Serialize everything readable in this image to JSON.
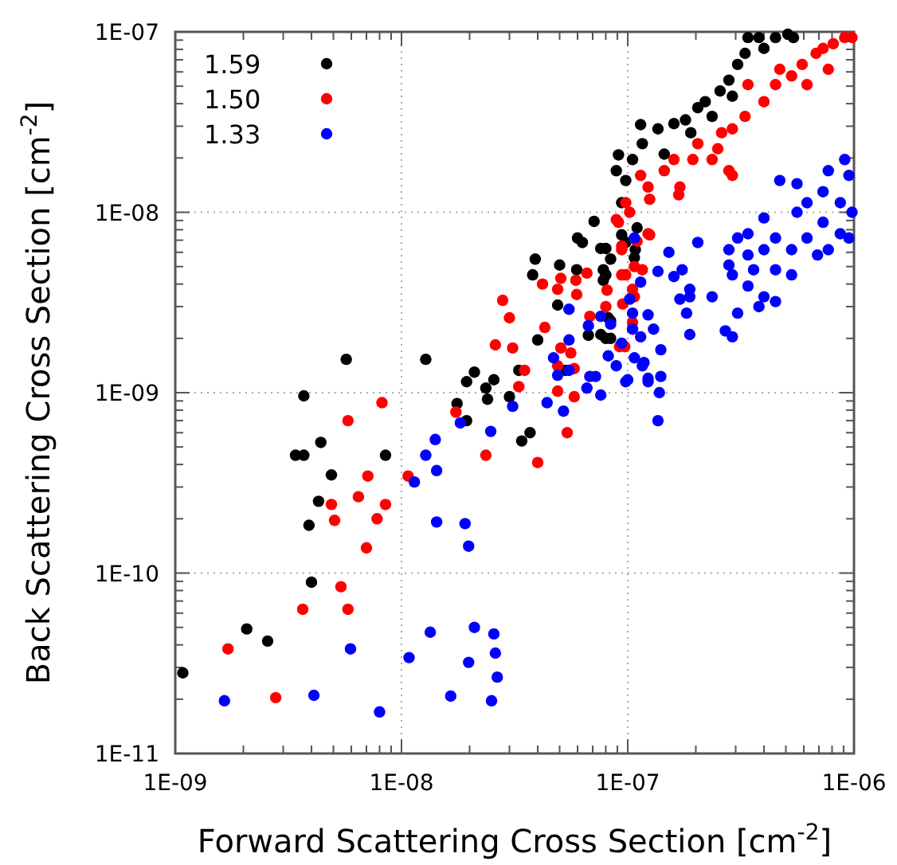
{
  "chart_data": {
    "type": "scatter",
    "xlabel": "Forward Scattering Cross Section [cm$^{-2}$]",
    "ylabel": "Back Scattering Cross Section [cm$^{-2}$]",
    "log": "xy",
    "grid": true,
    "legend": "top left",
    "marker": "circle",
    "xlim": [
      1e-09,
      1e-06
    ],
    "ylim": [
      1e-11,
      1e-07
    ],
    "xticks": [
      {
        "value": 1e-09,
        "label": "1E-09"
      },
      {
        "value": 2e-09,
        "label": null
      },
      {
        "value": 3e-09,
        "label": null
      },
      {
        "value": 4e-09,
        "label": null
      },
      {
        "value": 5e-09,
        "label": null
      },
      {
        "value": 6e-09,
        "label": null
      },
      {
        "value": 7e-09,
        "label": null
      },
      {
        "value": 8e-09,
        "label": null
      },
      {
        "value": 9e-09,
        "label": null
      },
      {
        "value": 1e-08,
        "label": "1E-08"
      },
      {
        "value": 2e-08,
        "label": null
      },
      {
        "value": 3e-08,
        "label": null
      },
      {
        "value": 4e-08,
        "label": null
      },
      {
        "value": 5e-08,
        "label": null
      },
      {
        "value": 6e-08,
        "label": null
      },
      {
        "value": 7e-08,
        "label": null
      },
      {
        "value": 8e-08,
        "label": null
      },
      {
        "value": 9e-08,
        "label": null
      },
      {
        "value": 1e-07,
        "label": "1E-07"
      },
      {
        "value": 2e-07,
        "label": null
      },
      {
        "value": 3e-07,
        "label": null
      },
      {
        "value": 4e-07,
        "label": null
      },
      {
        "value": 5e-07,
        "label": null
      },
      {
        "value": 6e-07,
        "label": null
      },
      {
        "value": 7e-07,
        "label": null
      },
      {
        "value": 8e-07,
        "label": null
      },
      {
        "value": 9e-07,
        "label": null
      },
      {
        "value": 1e-06,
        "label": "1E-06"
      }
    ],
    "yticks": [
      {
        "value": 1e-11,
        "label": "1E-11"
      },
      {
        "value": 2e-11,
        "label": null
      },
      {
        "value": 3e-11,
        "label": null
      },
      {
        "value": 4e-11,
        "label": null
      },
      {
        "value": 5e-11,
        "label": null
      },
      {
        "value": 6e-11,
        "label": null
      },
      {
        "value": 7e-11,
        "label": null
      },
      {
        "value": 8e-11,
        "label": null
      },
      {
        "value": 9e-11,
        "label": null
      },
      {
        "value": 1e-10,
        "label": "1E-10"
      },
      {
        "value": 2e-10,
        "label": null
      },
      {
        "value": 3e-10,
        "label": null
      },
      {
        "value": 4e-10,
        "label": null
      },
      {
        "value": 5e-10,
        "label": null
      },
      {
        "value": 6e-10,
        "label": null
      },
      {
        "value": 7e-10,
        "label": null
      },
      {
        "value": 8e-10,
        "label": null
      },
      {
        "value": 9e-10,
        "label": null
      },
      {
        "value": 1e-09,
        "label": "1E-09"
      },
      {
        "value": 2e-09,
        "label": null
      },
      {
        "value": 3e-09,
        "label": null
      },
      {
        "value": 4e-09,
        "label": null
      },
      {
        "value": 5e-09,
        "label": null
      },
      {
        "value": 6e-09,
        "label": null
      },
      {
        "value": 7e-09,
        "label": null
      },
      {
        "value": 8e-09,
        "label": null
      },
      {
        "value": 9e-09,
        "label": null
      },
      {
        "value": 1e-08,
        "label": "1E-08"
      },
      {
        "value": 2e-08,
        "label": null
      },
      {
        "value": 3e-08,
        "label": null
      },
      {
        "value": 4e-08,
        "label": null
      },
      {
        "value": 5e-08,
        "label": null
      },
      {
        "value": 6e-08,
        "label": null
      },
      {
        "value": 7e-08,
        "label": null
      },
      {
        "value": 8e-08,
        "label": null
      },
      {
        "value": 9e-08,
        "label": null
      },
      {
        "value": 1e-07,
        "label": "1E-07"
      }
    ],
    "series": [
      {
        "name": "1.59",
        "color": "#000000",
        "x": [
          1.08e-09,
          2.07e-09,
          2.56e-09,
          3.4e-09,
          3.7e-09,
          5.7e-09,
          3.7e-09,
          4.4e-09,
          4.9e-09,
          4.3e-09,
          3.9e-09,
          4e-09,
          8.5e-09,
          1.28e-08,
          1.94e-08,
          1.76e-08,
          2.1e-08,
          2.36e-08,
          2.56e-08,
          2.4e-08,
          3e-08,
          3.3e-08,
          3.9e-08,
          3.8e-08,
          4e-08,
          4.9e-08,
          5e-08,
          5.95e-08,
          6e-08,
          6.3e-08,
          7.1e-08,
          7.6e-08,
          8e-08,
          7.8e-08,
          7.8e-08,
          6.7e-08,
          7.6e-08,
          8e-08,
          8.4e-08,
          5.3e-08,
          3.7e-08,
          3.4e-08,
          1.94e-08,
          9.4e-08,
          1.07e-07,
          1.08e-07,
          9.1e-08,
          8.9e-08,
          9.8e-08,
          9.4e-08,
          1.05e-07,
          1.16e-07,
          1.14e-07,
          1.36e-07,
          1.45e-07,
          1.6e-07,
          1.8e-07,
          1.9e-07,
          2.04e-07,
          2.2e-07,
          2.36e-07,
          2.56e-07,
          2.8e-07,
          2.9e-07,
          3.06e-07,
          3.3e-07,
          3.4e-07,
          3.8e-07,
          4e-07,
          4.5e-07,
          5.1e-07,
          5.4e-07,
          9.8e-08,
          1.1e-07,
          8.4e-08,
          8e-08,
          8.4e-08,
          8.2e-08
        ],
        "values": [
          2.8e-11,
          4.9e-11,
          4.2e-11,
          4.5e-10,
          4.5e-10,
          1.53e-09,
          9.6e-10,
          5.3e-10,
          3.5e-10,
          2.5e-10,
          1.84e-10,
          8.9e-11,
          4.5e-10,
          1.53e-09,
          1.15e-09,
          8.7e-10,
          1.3e-09,
          1.06e-09,
          1.18e-09,
          9.2e-10,
          9.5e-10,
          1.33e-09,
          5.5e-09,
          4.5e-09,
          1.96e-09,
          3.06e-09,
          5.1e-09,
          4.8e-09,
          7.2e-09,
          6.8e-09,
          8.9e-09,
          6.3e-09,
          6.3e-09,
          4.8e-09,
          4.2e-09,
          2.08e-09,
          2.1e-09,
          2e-09,
          2.5e-09,
          1.33e-09,
          6e-10,
          5.4e-10,
          7e-10,
          7.5e-09,
          5.6e-09,
          6.2e-09,
          2.08e-08,
          1.7e-08,
          1.5e-08,
          1.13e-08,
          1.96e-08,
          2.4e-08,
          3.06e-08,
          2.9e-08,
          2.1e-08,
          3.1e-08,
          3.25e-08,
          2.76e-08,
          3.8e-08,
          4.1e-08,
          3.4e-08,
          4.7e-08,
          5.4e-08,
          4.4e-08,
          6.6e-08,
          7.6e-08,
          9.3e-08,
          9.3e-08,
          8.1e-08,
          9.3e-08,
          9.7e-08,
          9.3e-08,
          6.8e-09,
          8.2e-09,
          5.5e-09,
          4.5e-09,
          2e-09,
          2.6e-09
        ]
      },
      {
        "name": "1.50",
        "color": "#ff0000",
        "x": [
          1.71e-09,
          2.78e-09,
          3.66e-09,
          5.4e-09,
          5.8e-09,
          8.2e-09,
          5.8e-09,
          7.1e-09,
          4.9e-09,
          5.06e-09,
          6.45e-09,
          7.8e-09,
          8.5e-09,
          7e-09,
          1.07e-08,
          1.74e-08,
          2.36e-08,
          4e-08,
          5.4e-08,
          5.8e-08,
          4.9e-08,
          5.8e-08,
          4.9e-08,
          5.06e-08,
          5.6e-08,
          3.1e-08,
          2.6e-08,
          3.5e-08,
          3.3e-08,
          4.3e-08,
          3e-08,
          2.8e-08,
          4.2e-08,
          4.9e-08,
          5.06e-08,
          5.9e-08,
          6.6e-08,
          8.1e-08,
          8e-08,
          6.8e-08,
          5.95e-08,
          9.4e-08,
          9.2e-08,
          9.5e-08,
          1.05e-07,
          1.07e-07,
          1.16e-07,
          1.1e-07,
          1.25e-07,
          9.4e-08,
          8.9e-08,
          1.02e-07,
          9.8e-08,
          1.25e-07,
          1.68e-07,
          1.14e-07,
          1.23e-07,
          1.45e-07,
          1.7e-07,
          1.6e-07,
          1.94e-07,
          2.04e-07,
          2.36e-07,
          2.5e-07,
          2.8e-07,
          2.9e-07,
          2.6e-07,
          2.9e-07,
          3.3e-07,
          3.4e-07,
          4e-07,
          4.5e-07,
          4.7e-07,
          5.3e-07,
          5.9e-07,
          6.2e-07,
          6.8e-07,
          7.3e-07,
          8.1e-07,
          9.1e-07,
          9.8e-07,
          7.7e-07,
          9.1e-08,
          9.4e-08,
          9.8e-08,
          1.07e-07,
          1.05e-07,
          9.7e-08,
          1.23e-07
        ],
        "values": [
          3.8e-11,
          2.04e-11,
          6.3e-11,
          8.4e-11,
          6.3e-11,
          8.8e-10,
          7e-10,
          3.45e-10,
          2.4e-10,
          1.96e-10,
          2.65e-10,
          2e-10,
          2.4e-10,
          1.38e-10,
          3.45e-10,
          7.8e-10,
          4.5e-10,
          4.1e-10,
          6e-10,
          9.5e-10,
          1.02e-09,
          1.36e-09,
          1.41e-09,
          1.77e-09,
          1.66e-09,
          1.77e-09,
          1.84e-09,
          1.33e-09,
          1.08e-09,
          2.3e-09,
          2.6e-09,
          3.25e-09,
          4e-09,
          3.74e-09,
          4.3e-09,
          4.2e-09,
          4.6e-09,
          3.7e-09,
          3e-09,
          2.65e-09,
          3.5e-09,
          4.5e-09,
          1.8e-09,
          3.1e-09,
          3.74e-09,
          5e-09,
          4.8e-09,
          6.9e-09,
          7.5e-09,
          6.5e-09,
          9.1e-09,
          1e-08,
          1.13e-08,
          1.18e-08,
          1.25e-08,
          1.6e-08,
          1.38e-08,
          1.7e-08,
          1.38e-08,
          1.96e-08,
          1.96e-08,
          2.4e-08,
          1.96e-08,
          2.25e-08,
          1.7e-08,
          1.6e-08,
          2.76e-08,
          2.9e-08,
          3.4e-08,
          5.1e-08,
          4.1e-08,
          5.1e-08,
          6.2e-08,
          5.7e-08,
          6.6e-08,
          5.1e-08,
          7.6e-08,
          8.1e-08,
          8.6e-08,
          9.3e-08,
          9.3e-08,
          6.2e-08,
          8.8e-09,
          6.2e-09,
          4.5e-09,
          3.4e-09,
          2.45e-09,
          1.8e-09,
          7.6e-09
        ]
      },
      {
        "name": "1.33",
        "color": "#0000ff",
        "x": [
          1.65e-09,
          4.1e-09,
          8e-09,
          5.95e-09,
          1.08e-08,
          1.34e-08,
          1.65e-08,
          1.98e-08,
          2.1e-08,
          1.98e-08,
          1.91e-08,
          1.43e-08,
          1.14e-08,
          1.43e-08,
          1.28e-08,
          1.41e-08,
          1.82e-08,
          2.56e-08,
          2.6e-08,
          2.65e-08,
          2.5e-08,
          2.48e-08,
          3.1e-08,
          4.4e-08,
          5.2e-08,
          4.9e-08,
          4.7e-08,
          5.5e-08,
          5.5e-08,
          6.6e-08,
          7.6e-08,
          6.8e-08,
          7.2e-08,
          8.2e-08,
          8.4e-08,
          9.4e-08,
          1e-07,
          1.07e-07,
          1.18e-07,
          1.23e-07,
          1.36e-07,
          1.38e-07,
          1.4e-07,
          1.05e-07,
          1.14e-07,
          1.3e-07,
          1.4e-07,
          1.02e-07,
          1.05e-07,
          1.14e-07,
          1.36e-07,
          1.52e-07,
          1.6e-07,
          1.74e-07,
          1.88e-07,
          1.7e-07,
          1.82e-07,
          1.88e-07,
          2.04e-07,
          5.5e-08,
          7.6e-08,
          6.7e-08,
          1.07e-07,
          1.23e-07,
          9.8e-08,
          1.23e-07,
          1.16e-07,
          8.9e-08,
          1.88e-07,
          2.36e-07,
          2.9e-07,
          2.8e-07,
          2.7e-07,
          2.9e-07,
          3.06e-07,
          3.4e-07,
          4e-07,
          3.8e-07,
          3.4e-07,
          4e-07,
          4.7e-07,
          5.6e-07,
          4.5e-07,
          5.3e-07,
          4.5e-07,
          5.3e-07,
          4e-07,
          6.2e-07,
          7.3e-07,
          7.7e-07,
          9.1e-07,
          9.5e-07,
          9.8e-07,
          9.5e-07,
          8.7e-07,
          7.7e-07,
          6.9e-07,
          6.2e-07,
          5.6e-07,
          8.7e-07,
          7.3e-07,
          3.4e-07,
          3.6e-07,
          2.8e-07,
          3.06e-07,
          4.5e-07
        ],
        "values": [
          1.96e-11,
          2.1e-11,
          1.7e-11,
          3.8e-11,
          3.4e-11,
          4.7e-11,
          2.08e-11,
          3.2e-11,
          5e-11,
          1.41e-10,
          1.88e-10,
          1.92e-10,
          3.2e-10,
          3.7e-10,
          4.5e-10,
          5.5e-10,
          6.8e-10,
          4.6e-11,
          3.6e-11,
          2.65e-11,
          1.96e-11,
          6.1e-10,
          8.4e-10,
          8.8e-10,
          7.9e-10,
          1.25e-09,
          1.56e-09,
          1.33e-09,
          1.96e-09,
          1.06e-09,
          9.7e-10,
          1.23e-09,
          1.23e-09,
          1.6e-09,
          2.4e-09,
          1.88e-09,
          1.18e-09,
          1.56e-09,
          1.47e-09,
          1.2e-09,
          7e-10,
          1e-09,
          1.23e-09,
          2.25e-09,
          2.04e-09,
          2.25e-09,
          1.73e-09,
          3.3e-09,
          2.76e-09,
          4.1e-09,
          4.7e-09,
          6e-09,
          4.4e-09,
          4.8e-09,
          3.74e-09,
          3.3e-09,
          2.76e-09,
          2.1e-09,
          6.8e-09,
          2.9e-09,
          2.65e-09,
          2.35e-09,
          7.2e-09,
          2.7e-09,
          1.15e-09,
          1.15e-09,
          1.41e-09,
          1.41e-09,
          3.4e-09,
          3.4e-09,
          4.5e-09,
          5.1e-09,
          2.2e-09,
          2.04e-09,
          2.76e-09,
          3.9e-09,
          3.4e-09,
          3e-09,
          7.6e-09,
          9.3e-09,
          1.5e-08,
          1.44e-08,
          7.2e-09,
          6.2e-09,
          4.8e-09,
          4.5e-09,
          6.2e-09,
          1.13e-08,
          1.3e-08,
          1.7e-08,
          1.96e-08,
          1.6e-08,
          1e-08,
          7.2e-09,
          7.6e-09,
          6.2e-09,
          5.8e-09,
          7.2e-09,
          1e-08,
          1.13e-08,
          8.8e-09,
          5.8e-09,
          4.8e-09,
          6.2e-09,
          7.2e-09,
          3.2e-09
        ]
      }
    ]
  }
}
